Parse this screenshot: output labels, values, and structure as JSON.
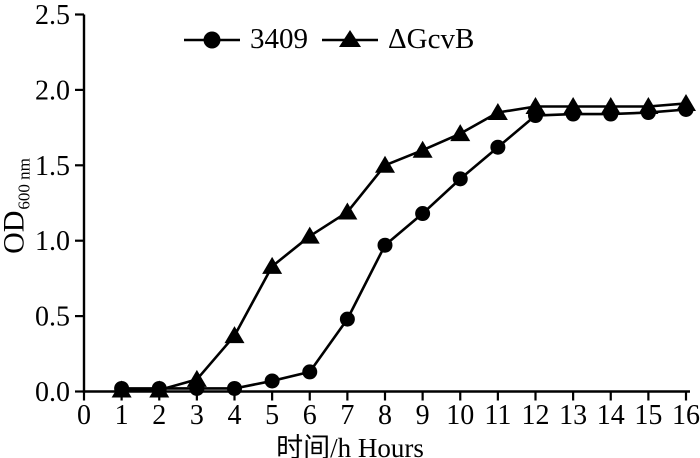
{
  "figure": {
    "background": "#ffffff",
    "ink_color": "#000000"
  },
  "chart_data": {
    "type": "line",
    "title": "",
    "x": [
      1,
      2,
      3,
      4,
      5,
      6,
      7,
      8,
      9,
      10,
      11,
      12,
      13,
      14,
      15,
      16
    ],
    "series": [
      {
        "name": "3409",
        "marker": "circle",
        "color": "#000000",
        "values": [
          0.02,
          0.02,
          0.02,
          0.02,
          0.07,
          0.13,
          0.48,
          0.97,
          1.18,
          1.41,
          1.62,
          1.83,
          1.84,
          1.84,
          1.85,
          1.87
        ]
      },
      {
        "name": "ΔGcvB",
        "marker": "triangle",
        "color": "#000000",
        "values": [
          0.01,
          0.01,
          0.08,
          0.37,
          0.83,
          1.03,
          1.19,
          1.5,
          1.6,
          1.71,
          1.85,
          1.89,
          1.89,
          1.89,
          1.89,
          1.91
        ]
      }
    ],
    "xlabel": "时间/h Hours",
    "ylabel": "OD",
    "ylabel_subscript": "600 nm",
    "xlim": [
      0,
      16
    ],
    "ylim": [
      0,
      2.5
    ],
    "xticks": [
      0,
      1,
      2,
      3,
      4,
      5,
      6,
      7,
      8,
      9,
      10,
      11,
      12,
      13,
      14,
      15,
      16
    ],
    "yticks": [
      0,
      0.5,
      1,
      1.5,
      2,
      2.5
    ],
    "ytick_labels": [
      "0.0",
      "0.5",
      "1.0",
      "1.5",
      "2.0",
      "2.5"
    ],
    "grid": false,
    "legend_position": "top-center"
  }
}
